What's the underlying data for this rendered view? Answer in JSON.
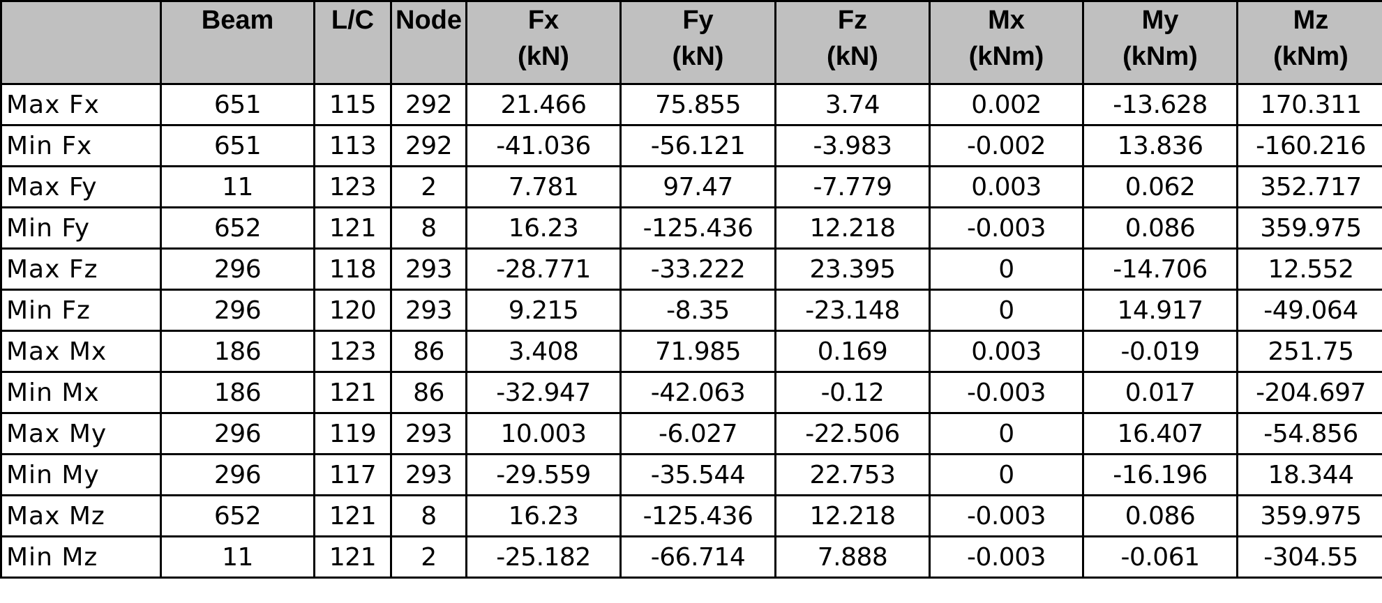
{
  "table": {
    "headers": [
      {
        "line1": "",
        "line2": ""
      },
      {
        "line1": "Beam",
        "line2": ""
      },
      {
        "line1": "L/C",
        "line2": ""
      },
      {
        "line1": "Node",
        "line2": ""
      },
      {
        "line1": "Fx",
        "line2": "(kN)"
      },
      {
        "line1": "Fy",
        "line2": "(kN)"
      },
      {
        "line1": "Fz",
        "line2": "(kN)"
      },
      {
        "line1": "Mx",
        "line2": "(kNm)"
      },
      {
        "line1": "My",
        "line2": "(kNm)"
      },
      {
        "line1": "Mz",
        "line2": "(kNm)"
      }
    ],
    "rows": [
      [
        "Max Fx",
        "651",
        "115",
        "292",
        "21.466",
        "75.855",
        "3.74",
        "0.002",
        "-13.628",
        "170.311"
      ],
      [
        "Min Fx",
        "651",
        "113",
        "292",
        "-41.036",
        "-56.121",
        "-3.983",
        "-0.002",
        "13.836",
        "-160.216"
      ],
      [
        "Max Fy",
        "11",
        "123",
        "2",
        "7.781",
        "97.47",
        "-7.779",
        "0.003",
        "0.062",
        "352.717"
      ],
      [
        "Min Fy",
        "652",
        "121",
        "8",
        "16.23",
        "-125.436",
        "12.218",
        "-0.003",
        "0.086",
        "359.975"
      ],
      [
        "Max Fz",
        "296",
        "118",
        "293",
        "-28.771",
        "-33.222",
        "23.395",
        "0",
        "-14.706",
        "12.552"
      ],
      [
        "Min Fz",
        "296",
        "120",
        "293",
        "9.215",
        "-8.35",
        "-23.148",
        "0",
        "14.917",
        "-49.064"
      ],
      [
        "Max Mx",
        "186",
        "123",
        "86",
        "3.408",
        "71.985",
        "0.169",
        "0.003",
        "-0.019",
        "251.75"
      ],
      [
        "Min Mx",
        "186",
        "121",
        "86",
        "-32.947",
        "-42.063",
        "-0.12",
        "-0.003",
        "0.017",
        "-204.697"
      ],
      [
        "Max My",
        "296",
        "119",
        "293",
        "10.003",
        "-6.027",
        "-22.506",
        "0",
        "16.407",
        "-54.856"
      ],
      [
        "Min My",
        "296",
        "117",
        "293",
        "-29.559",
        "-35.544",
        "22.753",
        "0",
        "-16.196",
        "18.344"
      ],
      [
        "Max Mz",
        "652",
        "121",
        "8",
        "16.23",
        "-125.436",
        "12.218",
        "-0.003",
        "0.086",
        "359.975"
      ],
      [
        "Min Mz",
        "11",
        "121",
        "2",
        "-25.182",
        "-66.714",
        "7.888",
        "-0.003",
        "-0.061",
        "-304.55"
      ]
    ]
  },
  "colors": {
    "header_background": "#c0c0c0",
    "border": "#000000",
    "cell_background": "#ffffff"
  }
}
